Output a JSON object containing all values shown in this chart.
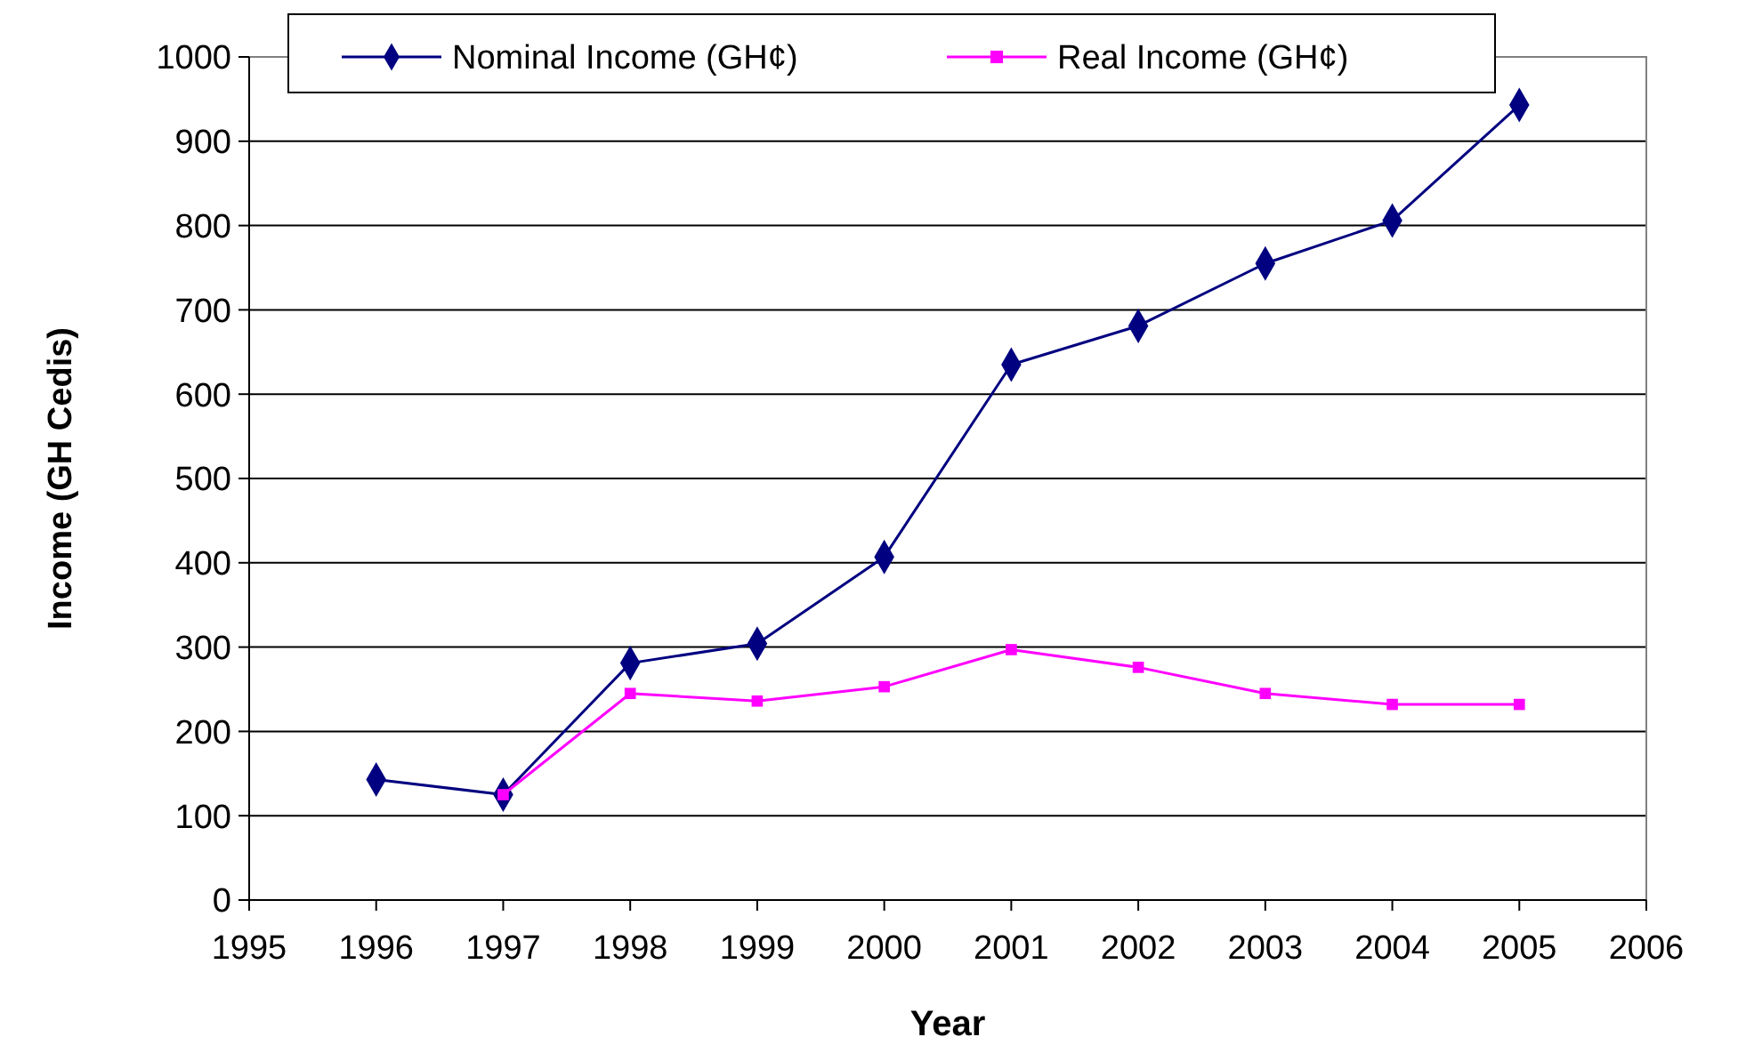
{
  "chart_data": {
    "type": "line",
    "xlabel": "Year",
    "ylabel": "Income (GH Cedis)",
    "x": [
      1996,
      1997,
      1998,
      1999,
      2000,
      2001,
      2002,
      2003,
      2004,
      2005
    ],
    "series": [
      {
        "name": "Nominal Income  (GH¢)",
        "color": "#000080",
        "marker": "diamond",
        "values": [
          143,
          125,
          281,
          304,
          407,
          635,
          681,
          755,
          806,
          943
        ]
      },
      {
        "name": "Real Income (GH¢)",
        "color": "#ff00ff",
        "marker": "square",
        "x": [
          1997,
          1998,
          1999,
          2000,
          2001,
          2002,
          2003,
          2004,
          2005
        ],
        "values": [
          125,
          245,
          236,
          253,
          297,
          276,
          245,
          232,
          232
        ]
      }
    ],
    "xlim": [
      1995,
      2006
    ],
    "xticks": [
      1995,
      1996,
      1997,
      1998,
      1999,
      2000,
      2001,
      2002,
      2003,
      2004,
      2005,
      2006
    ],
    "ylim": [
      0,
      1000
    ],
    "yticks": [
      0,
      100,
      200,
      300,
      400,
      500,
      600,
      700,
      800,
      900,
      1000
    ],
    "grid": "y",
    "legend": "top",
    "line_style": "solid"
  }
}
